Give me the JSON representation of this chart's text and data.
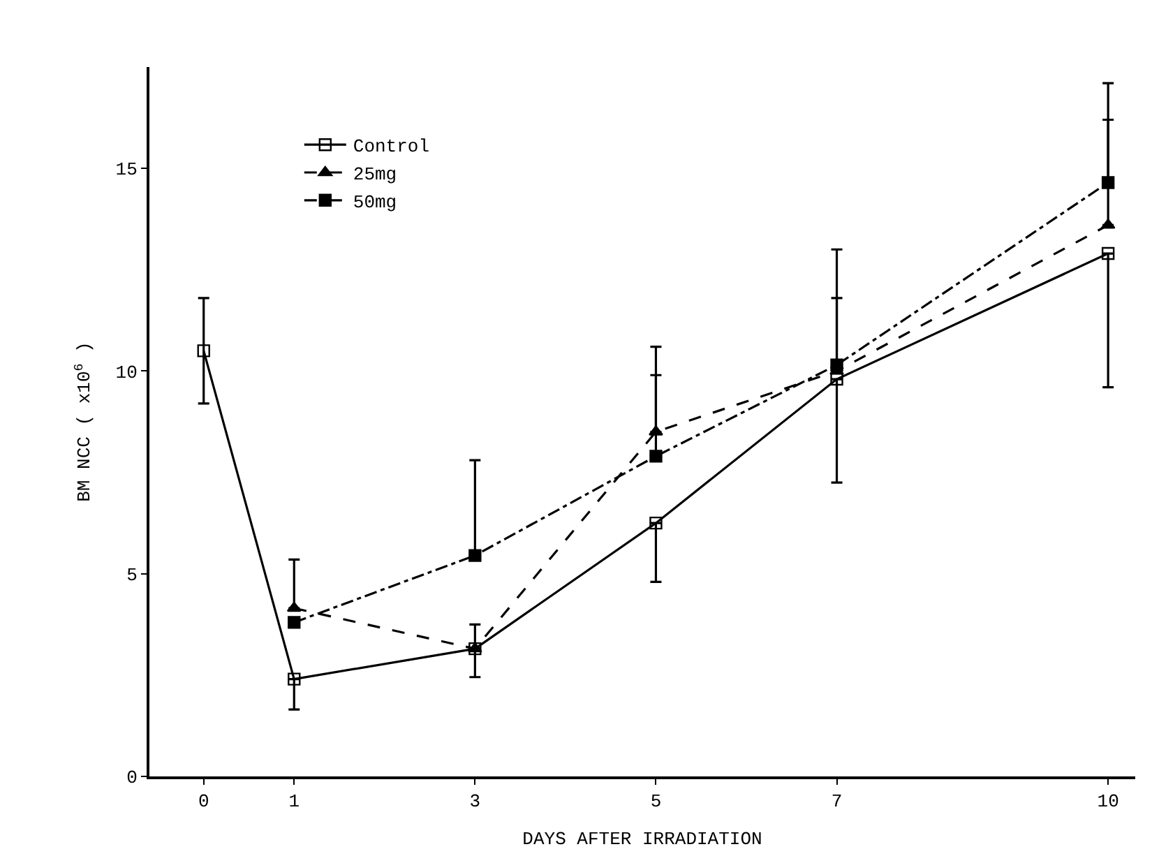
{
  "chart_data": {
    "type": "line",
    "xlabel": "DAYS AFTER IRRADIATION",
    "ylabel": "BM NCC ( x10$^{6}$ )",
    "xlim": [
      -0.6,
      10.3
    ],
    "xticks": [
      0,
      1,
      3,
      5,
      7,
      10
    ],
    "ylim": [
      0,
      17.5
    ],
    "yticks": [
      0,
      5,
      10,
      15
    ],
    "legend": "top left",
    "series": [
      {
        "name": "Control",
        "color": "#000000",
        "marker": "square-open",
        "line_style": "solid",
        "x": [
          0,
          1,
          3,
          5,
          7,
          10
        ],
        "values": [
          10.5,
          2.4,
          3.15,
          6.25,
          9.8,
          12.9
        ],
        "errors": [
          [
            9.2,
            11.8
          ],
          [
            1.65,
            2.4
          ],
          [
            2.45,
            3.15
          ],
          [
            4.8,
            6.25
          ],
          [
            7.25,
            9.8
          ],
          [
            9.6,
            12.9
          ]
        ]
      },
      {
        "name": "25mg",
        "color": "#000000",
        "marker": "triangle",
        "line_style": "dashed",
        "x": [
          1,
          3,
          5,
          7,
          10
        ],
        "values": [
          4.15,
          3.15,
          8.5,
          10.0,
          13.6
        ],
        "errors": [
          [
            4.15,
            5.35
          ],
          [
            3.15,
            3.75
          ],
          [
            8.5,
            9.9
          ],
          [
            10.0,
            11.8
          ],
          [
            13.6,
            16.2
          ]
        ]
      },
      {
        "name": "50mg",
        "color": "#000000",
        "marker": "square",
        "line_style": "dashdot",
        "x": [
          1,
          3,
          5,
          7,
          10
        ],
        "values": [
          3.8,
          5.45,
          7.9,
          10.15,
          14.65
        ],
        "errors": [
          null,
          [
            5.45,
            7.8
          ],
          [
            7.9,
            10.6
          ],
          [
            10.15,
            13.0
          ],
          [
            14.65,
            17.1
          ]
        ]
      }
    ]
  }
}
